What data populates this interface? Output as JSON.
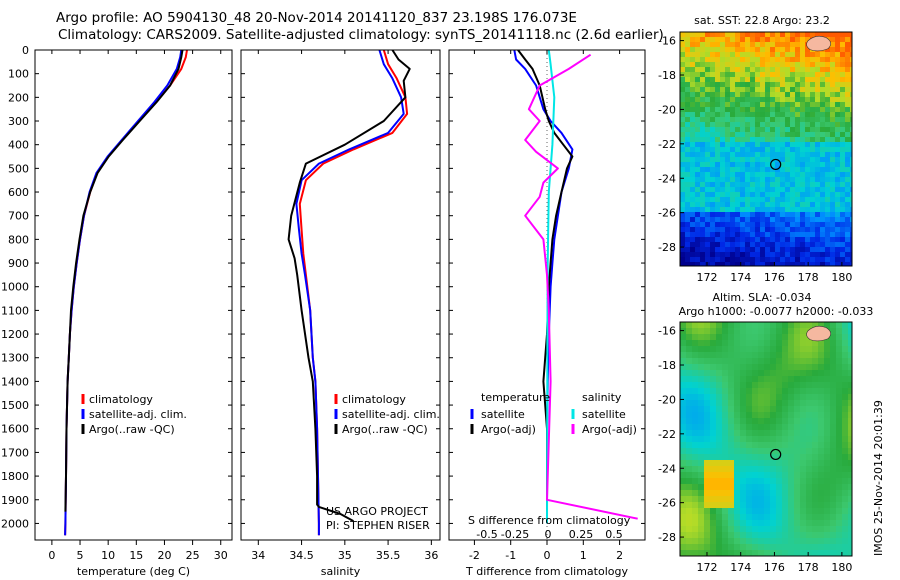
{
  "title": {
    "line1": "Argo profile: AO 5904130_48 20-Nov-2014 20141120_837 23.198S 176.073E",
    "line2": "Climatology: CARS2009. Satellite-adjusted climatology: synTS_20141118.nc (2.6d earlier)"
  },
  "side_label": "IMOS 25-Nov-2014 20:01:39",
  "colors": {
    "climatology": "#ff0000",
    "satellite": "#0000ff",
    "argo": "#000000",
    "sat_salinity": "#00e6e6",
    "argo_salinity": "#ff00ff",
    "land": "#f5b8a0"
  },
  "chart_data": [
    {
      "type": "line",
      "name": "temperature-profile",
      "xlabel": "temperature (deg C)",
      "xlim": [
        -3,
        32
      ],
      "xticks": [
        0,
        5,
        10,
        15,
        20,
        25,
        30
      ],
      "ylim": [
        2070,
        0
      ],
      "yticks": [
        0,
        100,
        200,
        300,
        400,
        500,
        600,
        700,
        800,
        900,
        1000,
        1100,
        1200,
        1300,
        1400,
        1500,
        1600,
        1700,
        1800,
        1900,
        2000
      ],
      "legend": [
        "climatology",
        "satellite-adj. clim.",
        "Argo(..raw -QC)"
      ],
      "series": [
        {
          "name": "climatology",
          "color": "#ff0000",
          "x": [
            24.0,
            23.8,
            23.0,
            21.0,
            18.5,
            15.5,
            12.5,
            10.0,
            8.0,
            6.8,
            5.7,
            5.0,
            4.4,
            3.9,
            3.5,
            3.2,
            3.0,
            2.8,
            2.6,
            2.5,
            2.4,
            2.35
          ],
          "y": [
            0,
            30,
            80,
            150,
            220,
            300,
            380,
            450,
            520,
            600,
            700,
            800,
            900,
            1000,
            1100,
            1200,
            1300,
            1400,
            1600,
            1800,
            2000,
            2050
          ]
        },
        {
          "name": "satellite-adj. clim.",
          "color": "#0000ff",
          "x": [
            23.0,
            22.8,
            22.2,
            20.5,
            18.2,
            15.3,
            12.4,
            9.9,
            7.9,
            6.7,
            5.7,
            5.0,
            4.4,
            3.9,
            3.5,
            3.2,
            3.0,
            2.8,
            2.6,
            2.5,
            2.4,
            2.35
          ],
          "y": [
            0,
            30,
            80,
            150,
            220,
            300,
            380,
            450,
            520,
            600,
            700,
            800,
            900,
            1000,
            1100,
            1200,
            1300,
            1400,
            1600,
            1800,
            2000,
            2050
          ]
        },
        {
          "name": "Argo(..raw -QC)",
          "color": "#000000",
          "x": [
            23.2,
            23.0,
            22.5,
            21.0,
            18.6,
            15.6,
            12.6,
            10.1,
            8.1,
            6.8,
            5.6,
            4.9,
            4.3,
            3.8,
            3.4,
            3.2,
            3.0,
            2.8,
            2.6,
            2.5,
            2.4
          ],
          "y": [
            0,
            30,
            80,
            150,
            220,
            300,
            380,
            450,
            520,
            600,
            700,
            800,
            900,
            1000,
            1100,
            1200,
            1300,
            1400,
            1600,
            1800,
            1950
          ]
        }
      ]
    },
    {
      "type": "line",
      "name": "salinity-profile",
      "xlabel": "salinity",
      "xlim": [
        33.8,
        36.1
      ],
      "xticks": [
        34,
        34.5,
        35,
        35.5,
        36
      ],
      "ylim": [
        2070,
        0
      ],
      "legend": [
        "climatology",
        "satellite-adj. clim.",
        "Argo(..raw -QC)"
      ],
      "annotations": [
        "US ARGO PROJECT",
        "PI: STEPHEN RISER"
      ],
      "series": [
        {
          "name": "climatology",
          "color": "#ff0000",
          "x": [
            35.45,
            35.5,
            35.6,
            35.7,
            35.72,
            35.55,
            35.1,
            34.75,
            34.55,
            34.48,
            34.5,
            34.52,
            34.55,
            34.6,
            34.63,
            34.66,
            34.68,
            34.69,
            34.7,
            34.7
          ],
          "y": [
            0,
            60,
            120,
            200,
            270,
            350,
            420,
            480,
            550,
            650,
            760,
            860,
            950,
            1100,
            1300,
            1400,
            1600,
            1800,
            2000,
            2050
          ]
        },
        {
          "name": "satellite-adj. clim.",
          "color": "#0000ff",
          "x": [
            35.4,
            35.45,
            35.55,
            35.65,
            35.68,
            35.5,
            35.05,
            34.7,
            34.5,
            34.44,
            34.47,
            34.5,
            34.54,
            34.6,
            34.63,
            34.66,
            34.68,
            34.69,
            34.7,
            34.7
          ],
          "y": [
            0,
            60,
            120,
            200,
            270,
            350,
            420,
            480,
            550,
            650,
            760,
            860,
            950,
            1100,
            1300,
            1400,
            1600,
            1800,
            2000,
            2050
          ]
        },
        {
          "name": "Argo(..raw -QC)",
          "color": "#000000",
          "x": [
            35.55,
            35.62,
            35.75,
            35.68,
            35.7,
            35.45,
            35.0,
            34.55,
            34.48,
            34.38,
            34.35,
            34.42,
            34.45,
            34.5,
            34.58,
            34.63,
            34.66,
            34.68,
            34.68,
            34.7,
            34.95,
            35.1
          ],
          "y": [
            0,
            40,
            80,
            130,
            200,
            300,
            400,
            480,
            560,
            700,
            800,
            880,
            950,
            1100,
            1300,
            1400,
            1600,
            1800,
            1920,
            1930,
            1960,
            1990
          ]
        }
      ]
    },
    {
      "type": "line",
      "name": "difference-profile",
      "xlabel": "T difference from climatology",
      "xlim": [
        -2.7,
        2.7
      ],
      "xticks": [
        -2,
        -1,
        0,
        1,
        2
      ],
      "top_axis_label": "S difference from climatology",
      "top_axis_ticks": [
        "-0.5",
        "-0.25",
        "0",
        "0.25",
        "0.5"
      ],
      "ylim": [
        2070,
        0
      ],
      "legend_left_title": "temperature",
      "legend_right_title": "salinity",
      "legend": [
        "satellite",
        "Argo(-adj)",
        "satellite",
        "Argo(-adj)"
      ],
      "series": [
        {
          "name": "temperature satellite",
          "color": "#0000ff",
          "x": [
            -0.9,
            -0.85,
            -0.6,
            -0.3,
            -0.1,
            0.1,
            0.4,
            0.7,
            0.6,
            0.4,
            0.3,
            0.2,
            0.15,
            0.1,
            0.05,
            0.02,
            0,
            0,
            0
          ],
          "y": [
            0,
            40,
            80,
            150,
            250,
            300,
            350,
            420,
            500,
            600,
            700,
            800,
            900,
            1000,
            1200,
            1400,
            1600,
            1800,
            2000
          ]
        },
        {
          "name": "temperature Argo(-adj)",
          "color": "#000000",
          "x": [
            -0.8,
            -0.6,
            -0.4,
            -0.2,
            -0.05,
            0.05,
            0.2,
            0.45,
            0.7,
            0.55,
            0.4,
            0.25,
            0.15,
            0.1,
            0.05,
            0,
            -0.1,
            0,
            0
          ],
          "y": [
            0,
            40,
            80,
            150,
            250,
            300,
            350,
            400,
            450,
            500,
            600,
            700,
            800,
            900,
            1000,
            1200,
            1400,
            1600,
            1950
          ]
        },
        {
          "name": "salinity satellite",
          "color": "#00e6e6",
          "x": [
            0.05,
            0.1,
            0.2,
            0.15,
            0.05,
            0.02,
            0.01,
            0
          ],
          "y": [
            0,
            60,
            200,
            400,
            600,
            900,
            1200,
            2000
          ]
        },
        {
          "name": "salinity Argo(-adj)",
          "color": "#ff00ff",
          "x": [
            1.2,
            0.6,
            -0.2,
            -0.5,
            -0.2,
            -0.6,
            -0.3,
            0.3,
            -0.1,
            -0.2,
            -0.6,
            -0.1,
            0.0,
            0.05,
            0.1,
            0.0,
            2.5
          ],
          "y": [
            20,
            80,
            150,
            250,
            300,
            380,
            430,
            500,
            560,
            620,
            700,
            800,
            950,
            1100,
            1400,
            1900,
            1980
          ]
        }
      ]
    },
    {
      "type": "heatmap",
      "name": "sst-map",
      "title": "sat. SST: 22.8  Argo: 23.2",
      "xlim": [
        170.4,
        180.6
      ],
      "ylim": [
        -29.1,
        -15.5
      ],
      "xticks": [
        172,
        174,
        176,
        178,
        180
      ],
      "yticks": [
        -16,
        -18,
        -20,
        -22,
        -24,
        -26,
        -28
      ],
      "float_position": [
        176.073,
        -23.198
      ]
    },
    {
      "type": "heatmap",
      "name": "sla-map",
      "title_line1": "Altim. SLA: -0.034",
      "title_line2": "Argo h1000: -0.0077 h2000: -0.033",
      "xlim": [
        170.4,
        180.6
      ],
      "ylim": [
        -29.1,
        -15.5
      ],
      "xticks": [
        172,
        174,
        176,
        178,
        180
      ],
      "yticks": [
        -16,
        -18,
        -20,
        -22,
        -24,
        -26,
        -28
      ],
      "float_position": [
        176.073,
        -23.198
      ]
    }
  ]
}
